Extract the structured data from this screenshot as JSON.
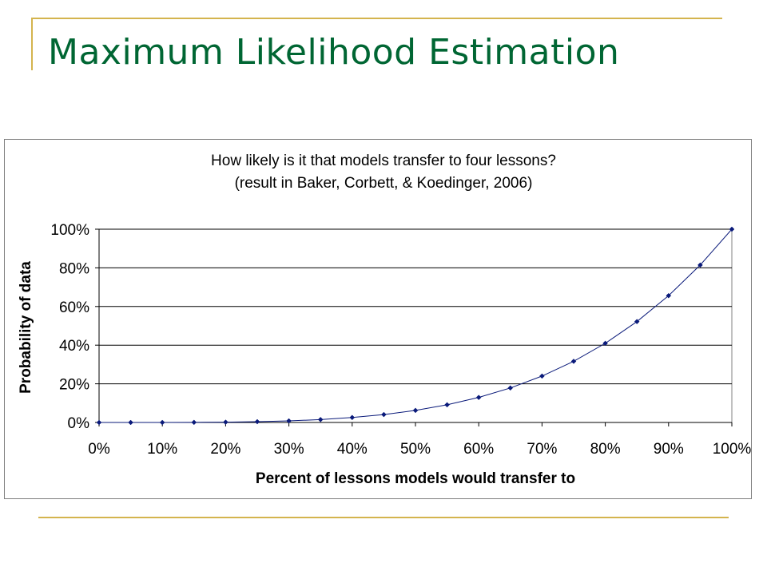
{
  "slide": {
    "title": "Maximum Likelihood Estimation"
  },
  "colors": {
    "title": "#006633",
    "accent_rule": "#d4b44e",
    "series": "#0a1a7a",
    "gridline": "#000000"
  },
  "chart_data": {
    "type": "line",
    "title_lines": [
      "How likely is it that models transfer to four lessons?",
      "(result in Baker, Corbett, & Koedinger, 2006)"
    ],
    "xlabel": "Percent of lessons models would transfer to",
    "ylabel": "Probability of data",
    "xlim": [
      0,
      1
    ],
    "ylim": [
      0,
      1
    ],
    "x_ticks": [
      "0%",
      "10%",
      "20%",
      "30%",
      "40%",
      "50%",
      "60%",
      "70%",
      "80%",
      "90%",
      "100%"
    ],
    "y_ticks": [
      "0%",
      "20%",
      "40%",
      "60%",
      "80%",
      "100%"
    ],
    "grid": "horizontal",
    "legend": "none",
    "marker": "diamond",
    "x": [
      0,
      0.05,
      0.1,
      0.15,
      0.2,
      0.25,
      0.3,
      0.35,
      0.4,
      0.45,
      0.5,
      0.55,
      0.6,
      0.65,
      0.7,
      0.75,
      0.8,
      0.85,
      0.9,
      0.95,
      1.0
    ],
    "y": [
      0,
      6.3e-06,
      0.0001,
      0.0005,
      0.0016,
      0.0039,
      0.0081,
      0.015,
      0.0256,
      0.041,
      0.0625,
      0.0915,
      0.1296,
      0.1785,
      0.2401,
      0.3164,
      0.4096,
      0.522,
      0.6561,
      0.8145,
      1.0
    ]
  }
}
